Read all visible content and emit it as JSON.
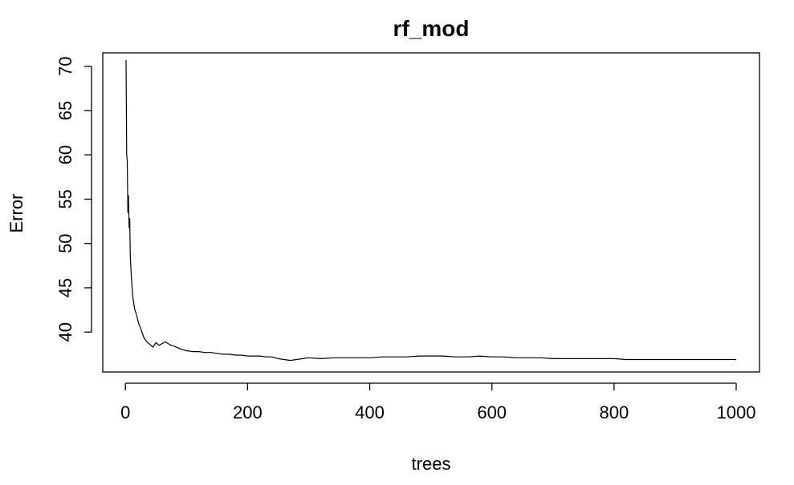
{
  "chart_data": {
    "type": "line",
    "title": "rf_mod",
    "xlabel": "trees",
    "ylabel": "Error",
    "xlim": [
      1,
      1000
    ],
    "ylim": [
      35.5,
      71.5
    ],
    "xticks": [
      0,
      200,
      400,
      600,
      800,
      1000
    ],
    "yticks": [
      40,
      45,
      50,
      55,
      60,
      65,
      70
    ],
    "grid": false,
    "legend": "none",
    "series": [
      {
        "color": "#000000",
        "x": [
          1,
          2,
          3,
          4,
          5,
          6,
          7,
          8,
          10,
          12,
          15,
          18,
          20,
          22,
          25,
          28,
          30,
          35,
          40,
          45,
          50,
          55,
          60,
          65,
          70,
          75,
          80,
          90,
          100,
          110,
          120,
          130,
          140,
          150,
          160,
          170,
          180,
          190,
          200,
          210,
          220,
          230,
          240,
          250,
          260,
          270,
          280,
          290,
          300,
          320,
          340,
          360,
          380,
          400,
          420,
          440,
          460,
          480,
          500,
          520,
          540,
          560,
          580,
          600,
          620,
          640,
          660,
          680,
          700,
          720,
          740,
          760,
          780,
          800,
          820,
          840,
          860,
          880,
          900,
          920,
          940,
          960,
          980,
          1000
        ],
        "values": [
          70.7,
          60.0,
          59.3,
          53.5,
          55.4,
          51.8,
          52.8,
          48.5,
          46.0,
          44.0,
          42.6,
          42.0,
          41.4,
          40.9,
          40.4,
          39.8,
          39.4,
          38.9,
          38.6,
          38.3,
          38.8,
          38.5,
          38.7,
          38.9,
          38.7,
          38.5,
          38.4,
          38.1,
          37.9,
          37.8,
          37.8,
          37.7,
          37.7,
          37.6,
          37.5,
          37.5,
          37.4,
          37.4,
          37.3,
          37.3,
          37.3,
          37.2,
          37.2,
          37.0,
          36.9,
          36.8,
          36.9,
          37.0,
          37.1,
          37.0,
          37.1,
          37.1,
          37.1,
          37.1,
          37.2,
          37.2,
          37.2,
          37.3,
          37.3,
          37.3,
          37.2,
          37.2,
          37.3,
          37.2,
          37.2,
          37.1,
          37.1,
          37.1,
          37.0,
          37.0,
          37.0,
          37.0,
          37.0,
          37.0,
          36.9,
          36.9,
          36.9,
          36.9,
          36.9,
          36.9,
          36.9,
          36.9,
          36.9,
          36.9
        ]
      }
    ]
  }
}
